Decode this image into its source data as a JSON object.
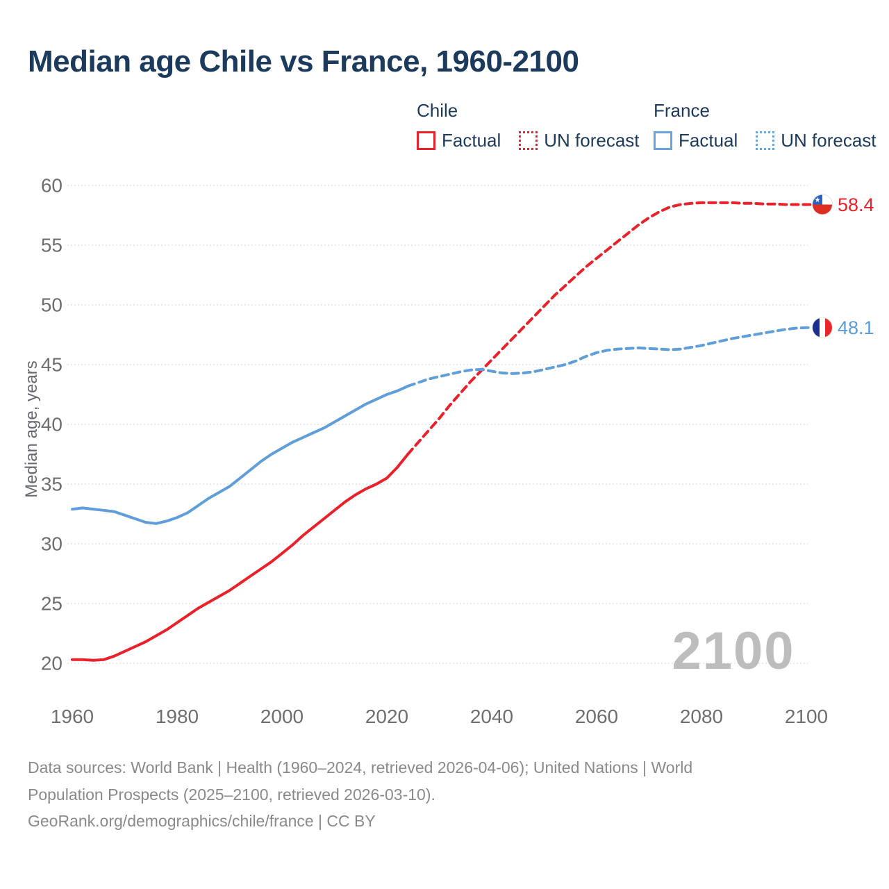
{
  "title": "Median age Chile vs France, 1960-2100",
  "y_axis_title": "Median age, years",
  "watermark": "2100",
  "legend": {
    "groups": [
      {
        "label": "Chile",
        "color": "#e8212a",
        "items": [
          {
            "label": "Factual",
            "style": "solid"
          },
          {
            "label": "UN forecast",
            "style": "dotted"
          }
        ]
      },
      {
        "label": "France",
        "color": "#6aa4de",
        "items": [
          {
            "label": "Factual",
            "style": "solid"
          },
          {
            "label": "UN forecast",
            "style": "dotted"
          }
        ]
      }
    ]
  },
  "end_labels": [
    {
      "series": "Chile",
      "value": "58.4",
      "flag": "chile-flag",
      "color": "#e8212a"
    },
    {
      "series": "France",
      "value": "48.1",
      "flag": "france-flag",
      "color": "#5b9bd8"
    }
  ],
  "footer": {
    "lines": [
      "Data sources: World Bank | Health (1960–2024, retrieved 2026-04-06); United Nations | World",
      "Population Prospects (2025–2100, retrieved 2026-03-10).",
      "GeoRank.org/demographics/chile/france | CC BY"
    ]
  },
  "chart_data": {
    "type": "line",
    "title": "Median age Chile vs France, 1960-2100",
    "xlabel": "",
    "ylabel": "Median age, years",
    "xlim": [
      1960,
      2100
    ],
    "ylim": [
      20,
      60
    ],
    "x_ticks": [
      1960,
      1980,
      2000,
      2020,
      2040,
      2060,
      2080,
      2100
    ],
    "y_ticks": [
      20,
      25,
      30,
      35,
      40,
      45,
      50,
      55,
      60
    ],
    "grid": "horizontal-dotted",
    "legend_position": "top-right",
    "series": [
      {
        "name": "Chile factual",
        "color": "#e8212a",
        "dash": "solid",
        "x_start": 1960,
        "x_step": 2,
        "values": [
          20.3,
          20.3,
          20.25,
          20.3,
          20.6,
          21.0,
          21.4,
          21.8,
          22.3,
          22.8,
          23.4,
          24.0,
          24.6,
          25.1,
          25.6,
          26.1,
          26.7,
          27.3,
          27.9,
          28.5,
          29.2,
          29.9,
          30.7,
          31.4,
          32.1,
          32.8,
          33.5,
          34.1,
          34.6,
          35.0,
          35.5,
          36.4,
          37.5
        ]
      },
      {
        "name": "Chile UN forecast",
        "color": "#e8212a",
        "dash": "dashed",
        "x_start": 2024,
        "x_step": 2,
        "values": [
          37.5,
          38.5,
          39.5,
          40.5,
          41.6,
          42.6,
          43.6,
          44.5,
          45.4,
          46.3,
          47.2,
          48.1,
          49.0,
          49.9,
          50.8,
          51.6,
          52.4,
          53.2,
          53.9,
          54.6,
          55.3,
          56.0,
          56.7,
          57.3,
          57.8,
          58.2,
          58.4,
          58.5,
          58.55,
          58.55,
          58.55,
          58.55,
          58.5,
          58.5,
          58.45,
          58.45,
          58.4,
          58.4,
          58.4
        ]
      },
      {
        "name": "France factual",
        "color": "#5f9ed9",
        "dash": "solid",
        "x_start": 1960,
        "x_step": 2,
        "values": [
          32.9,
          33.0,
          32.9,
          32.8,
          32.7,
          32.4,
          32.1,
          31.8,
          31.7,
          31.9,
          32.2,
          32.6,
          33.2,
          33.8,
          34.3,
          34.8,
          35.5,
          36.2,
          36.9,
          37.5,
          38.0,
          38.5,
          38.9,
          39.3,
          39.7,
          40.2,
          40.7,
          41.2,
          41.7,
          42.1,
          42.5,
          42.8,
          43.2
        ]
      },
      {
        "name": "France UN forecast",
        "color": "#5f9ed9",
        "dash": "dashed",
        "x_start": 2024,
        "x_step": 2,
        "values": [
          43.2,
          43.5,
          43.8,
          44.0,
          44.2,
          44.4,
          44.55,
          44.6,
          44.45,
          44.3,
          44.25,
          44.3,
          44.4,
          44.6,
          44.8,
          45.0,
          45.3,
          45.7,
          46.0,
          46.2,
          46.3,
          46.35,
          46.4,
          46.35,
          46.3,
          46.25,
          46.3,
          46.45,
          46.6,
          46.8,
          47.0,
          47.2,
          47.35,
          47.5,
          47.65,
          47.8,
          47.95,
          48.05,
          48.1
        ]
      }
    ]
  }
}
